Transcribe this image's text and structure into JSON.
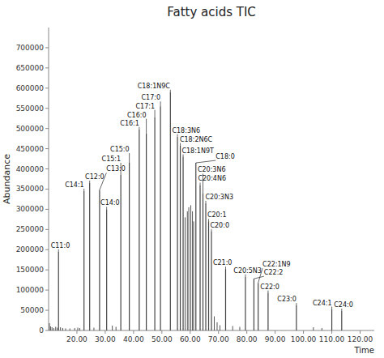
{
  "chart_data": {
    "type": "stem",
    "title": "Fatty acids TIC",
    "xlabel": "Time",
    "ylabel": "Abundance",
    "xlim": [
      10,
      125
    ],
    "ylim": [
      0,
      750000
    ],
    "xticks": [
      {
        "value": 20,
        "label": "20.00"
      },
      {
        "value": 30,
        "label": "30.00"
      },
      {
        "value": 40,
        "label": "40.00"
      },
      {
        "value": 50,
        "label": "50.00"
      },
      {
        "value": 60,
        "label": "60.00"
      },
      {
        "value": 70,
        "label": "70.00"
      },
      {
        "value": 80,
        "label": "80.00"
      },
      {
        "value": 90,
        "label": "90.00"
      },
      {
        "value": 100,
        "label": "100.00"
      },
      {
        "value": 110,
        "label": "110.00"
      },
      {
        "value": 120,
        "label": "120.00"
      }
    ],
    "yticks": [
      0,
      50000,
      100000,
      150000,
      200000,
      250000,
      300000,
      350000,
      400000,
      450000,
      500000,
      550000,
      600000,
      650000,
      700000
    ],
    "grid": false,
    "series": [
      {
        "color": "#444444",
        "x": [
          13.5,
          22.5,
          24.5,
          28.0,
          30.5,
          35.5,
          38.5,
          42.0,
          44.5,
          47.5,
          49.5,
          53.0,
          55.5,
          56.5,
          57.5,
          62.0,
          63.5,
          64.5,
          65.5,
          66.5,
          67.5,
          72.5,
          79.5,
          82.5,
          84.0,
          87.5,
          97.5,
          110.0,
          113.5
        ],
        "values": [
          195000,
          345000,
          365000,
          348000,
          300000,
          385000,
          415000,
          498000,
          488000,
          528000,
          555000,
          590000,
          480000,
          458000,
          430000,
          415000,
          360000,
          340000,
          315000,
          270000,
          245000,
          152000,
          133000,
          128000,
          118000,
          93000,
          62000,
          53000,
          48000
        ]
      },
      {
        "color": "#444444",
        "x": [
          10.3,
          10.7,
          11.2,
          11.8,
          12.5,
          13.1,
          14.2,
          15.0,
          16.0,
          17.5,
          19.2,
          20.3,
          21.0,
          26.0,
          32.5,
          33.8,
          58.2,
          59.0,
          59.5,
          60.2,
          60.8,
          61.2,
          68.5,
          69.5,
          70.5,
          75.0,
          77.5,
          103.5,
          106.5
        ],
        "values": [
          18000,
          10000,
          8000,
          6000,
          9000,
          7000,
          8000,
          6000,
          5000,
          5000,
          6000,
          7000,
          6000,
          7000,
          12000,
          9000,
          280000,
          295000,
          305000,
          310000,
          295000,
          270000,
          35000,
          20000,
          13000,
          11000,
          9000,
          8000,
          6000
        ]
      }
    ],
    "annotations": [
      {
        "text": "C11:0",
        "x": 13.5,
        "y": 195000
      },
      {
        "text": "C14:1",
        "x": 22.5,
        "y": 345000
      },
      {
        "text": "C12:0",
        "x": 24.5,
        "y": 365000
      },
      {
        "text": "C13:0",
        "x": 28.0,
        "y": 348000
      },
      {
        "text": "C14:0",
        "x": 30.5,
        "y": 300000
      },
      {
        "text": "C15:1",
        "x": 35.5,
        "y": 385000
      },
      {
        "text": "C15:0",
        "x": 38.5,
        "y": 415000
      },
      {
        "text": "C16:1",
        "x": 42.0,
        "y": 498000
      },
      {
        "text": "C16:0",
        "x": 44.5,
        "y": 488000
      },
      {
        "text": "C17:1",
        "x": 47.5,
        "y": 528000
      },
      {
        "text": "C17:0",
        "x": 49.5,
        "y": 555000
      },
      {
        "text": "C18:1N9C",
        "x": 53.0,
        "y": 590000
      },
      {
        "text": "C18:3N6",
        "x": 55.5,
        "y": 480000
      },
      {
        "text": "C18:2N6C",
        "x": 56.5,
        "y": 458000
      },
      {
        "text": "C18:1N9T",
        "x": 57.5,
        "y": 430000
      },
      {
        "text": "C18:0",
        "x": 62.0,
        "y": 415000
      },
      {
        "text": "C20:4N6",
        "x": 63.5,
        "y": 360000
      },
      {
        "text": "C20:3N6",
        "x": 64.5,
        "y": 340000
      },
      {
        "text": "C20:3N3",
        "x": 65.5,
        "y": 315000
      },
      {
        "text": "C20:1",
        "x": 66.5,
        "y": 270000
      },
      {
        "text": "C20:0",
        "x": 67.5,
        "y": 245000
      },
      {
        "text": "C21:0",
        "x": 72.5,
        "y": 152000
      },
      {
        "text": "C20:5N3",
        "x": 79.5,
        "y": 133000
      },
      {
        "text": "C22:2",
        "x": 82.5,
        "y": 128000
      },
      {
        "text": "C22:1N9",
        "x": 84.0,
        "y": 118000
      },
      {
        "text": "C22:0",
        "x": 87.5,
        "y": 93000
      },
      {
        "text": "C23:0",
        "x": 97.5,
        "y": 62000
      },
      {
        "text": "C24:1",
        "x": 110.0,
        "y": 53000
      },
      {
        "text": "C24:0",
        "x": 113.5,
        "y": 48000
      }
    ]
  }
}
